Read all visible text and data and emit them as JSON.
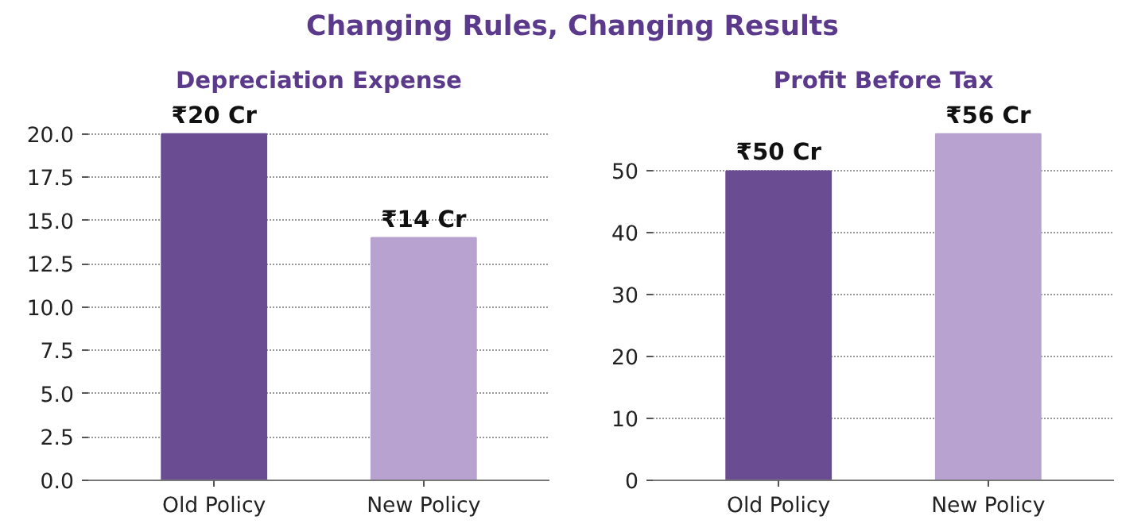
{
  "chart_data": [
    {
      "type": "bar",
      "title": "Depreciation Expense",
      "annotations": [
        "Changing Rules, Changing Results"
      ],
      "categories": [
        "Old Policy",
        "New Policy"
      ],
      "values": [
        20,
        14
      ],
      "colors": [
        "#6a4c93",
        "#b8a2d0"
      ],
      "value_labels": [
        "₹20 Cr",
        "₹14 Cr"
      ],
      "ylim": [
        0,
        20
      ],
      "yticks": [
        {
          "value": 0,
          "label": "0.0"
        },
        {
          "value": 2.5,
          "label": "2.5"
        },
        {
          "value": 5,
          "label": "5.0"
        },
        {
          "value": 7.5,
          "label": "7.5"
        },
        {
          "value": 10,
          "label": "10.0"
        },
        {
          "value": 12.5,
          "label": "12.5"
        },
        {
          "value": 15,
          "label": "15.0"
        },
        {
          "value": 17.5,
          "label": "17.5"
        },
        {
          "value": 20,
          "label": "20.0"
        }
      ],
      "grid": "y"
    },
    {
      "type": "bar",
      "title": "Profit Before Tax",
      "categories": [
        "Old Policy",
        "New Policy"
      ],
      "values": [
        50,
        56
      ],
      "colors": [
        "#6a4c93",
        "#b8a2d0"
      ],
      "value_labels": [
        "₹50 Cr",
        "₹56 Cr"
      ],
      "ylim": [
        0,
        56
      ],
      "yticks": [
        0,
        10,
        20,
        30,
        40,
        50
      ],
      "grid": "y"
    }
  ]
}
